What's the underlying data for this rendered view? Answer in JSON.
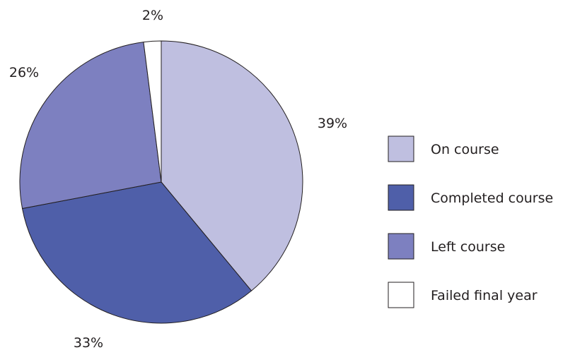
{
  "chart_data": {
    "type": "pie",
    "title": "",
    "slices": [
      {
        "label": "On course",
        "value": 39,
        "display": "39%",
        "color": "#bfbfe0"
      },
      {
        "label": "Completed course",
        "value": 33,
        "display": "33%",
        "color": "#4f5fa9"
      },
      {
        "label": "Left course",
        "value": 26,
        "display": "26%",
        "color": "#7d80c0"
      },
      {
        "label": "Failed final year",
        "value": 2,
        "display": "2%",
        "color": "#ffffff"
      }
    ],
    "legend_placement": "right",
    "start_angle": "12 o'clock, clockwise"
  }
}
